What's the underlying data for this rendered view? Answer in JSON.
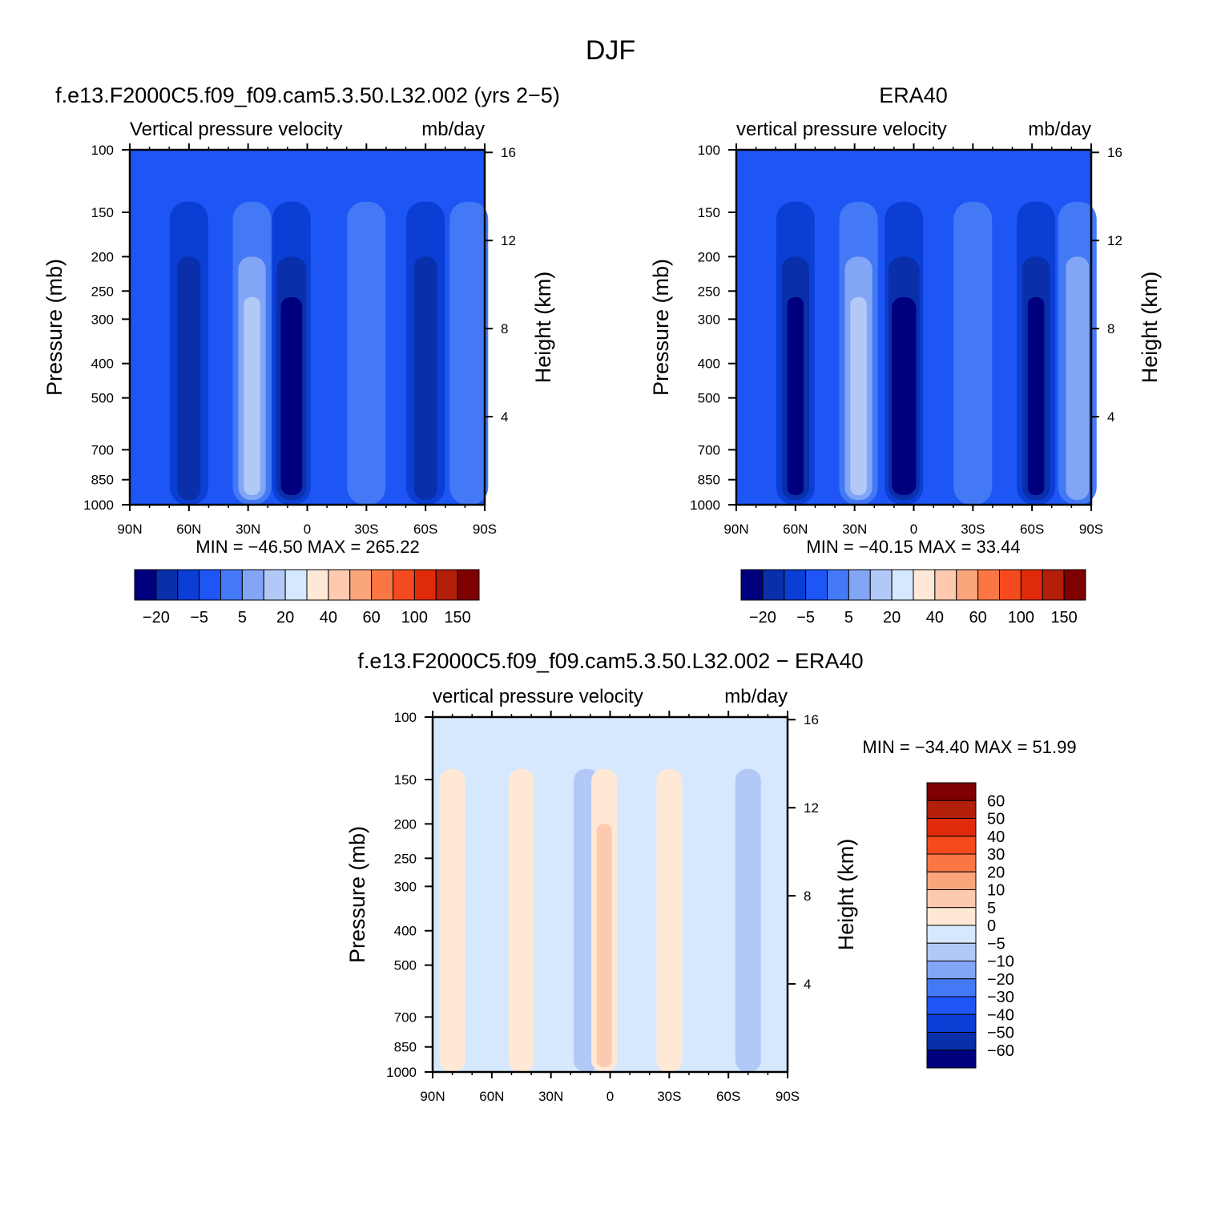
{
  "figure": {
    "title": "DJF"
  },
  "colors": {
    "full_scale": [
      "#00007F",
      "#0A2FAA",
      "#0A3ED4",
      "#1E55F5",
      "#4479F5",
      "#82A5F5",
      "#B2C9F7",
      "#D6E8FD",
      "#FFE9D6",
      "#FDCAB0",
      "#FBA57B",
      "#FB7645",
      "#F54A1E",
      "#DF2B0A",
      "#B21F0A",
      "#7F0000"
    ],
    "diff_scale": [
      "#00007F",
      "#0A2FAA",
      "#0A3ED4",
      "#1E55F5",
      "#4479F5",
      "#82A5F5",
      "#B2C9F7",
      "#D6E8FD",
      "#FFE9D6",
      "#FDCAB0",
      "#FBA57B",
      "#FB7645",
      "#F54A1E",
      "#DF2B0A",
      "#B21F0A",
      "#7F0000"
    ]
  },
  "chart_data": [
    {
      "type": "heatmap",
      "title": "f.e13.F2000C5.f09_f09.cam5.3.50.L32.002 (yrs 2−5)",
      "subtitle_left": "Vertical pressure velocity",
      "subtitle_right": "mb/day",
      "ylabel": "Pressure (mb)",
      "ylabel_right": "Height (km)",
      "x_ticks": [
        "90N",
        "60N",
        "30N",
        "0",
        "30S",
        "60S",
        "90S"
      ],
      "x_tick_values": [
        90,
        60,
        30,
        0,
        -30,
        -60,
        -90
      ],
      "y_ticks": [
        "100",
        "150",
        "200",
        "250",
        "300",
        "400",
        "500",
        "700",
        "850",
        "1000"
      ],
      "y_tick_values": [
        100,
        150,
        200,
        250,
        300,
        400,
        500,
        700,
        850,
        1000
      ],
      "y_right_ticks": [
        "16",
        "12",
        "8",
        "4"
      ],
      "y_right_tick_values": [
        16,
        12,
        8,
        4
      ],
      "ylim": [
        1000,
        100
      ],
      "xlim": [
        90,
        -90
      ],
      "min_label": "MIN = −46.50",
      "max_label": "MAX = 265.22",
      "colorbar_labels": [
        "−20",
        "−5",
        "5",
        "20",
        "40",
        "60",
        "100",
        "150"
      ],
      "features": [
        {
          "lat": 60,
          "level": -2
        },
        {
          "lat": 28,
          "level": 3
        },
        {
          "lat": 8,
          "level": -4
        },
        {
          "lat": -30,
          "level": 1
        },
        {
          "lat": -60,
          "level": -2
        },
        {
          "lat": -82,
          "level": 1
        }
      ]
    },
    {
      "type": "heatmap",
      "title": "ERA40",
      "subtitle_left": "vertical pressure velocity",
      "subtitle_right": "mb/day",
      "ylabel": "Pressure (mb)",
      "ylabel_right": "Height (km)",
      "x_ticks": [
        "90N",
        "60N",
        "30N",
        "0",
        "30S",
        "60S",
        "90S"
      ],
      "x_tick_values": [
        90,
        60,
        30,
        0,
        -30,
        -60,
        -90
      ],
      "y_ticks": [
        "100",
        "150",
        "200",
        "250",
        "300",
        "400",
        "500",
        "700",
        "850",
        "1000"
      ],
      "y_tick_values": [
        100,
        150,
        200,
        250,
        300,
        400,
        500,
        700,
        850,
        1000
      ],
      "y_right_ticks": [
        "16",
        "12",
        "8",
        "4"
      ],
      "y_right_tick_values": [
        16,
        12,
        8,
        4
      ],
      "ylim": [
        1000,
        100
      ],
      "xlim": [
        90,
        -90
      ],
      "min_label": "MIN = −40.15",
      "max_label": "MAX = 33.44",
      "colorbar_labels": [
        "−20",
        "−5",
        "5",
        "20",
        "40",
        "60",
        "100",
        "150"
      ],
      "features": [
        {
          "lat": 60,
          "level": -3
        },
        {
          "lat": 28,
          "level": 3
        },
        {
          "lat": 5,
          "level": -5
        },
        {
          "lat": -30,
          "level": 1
        },
        {
          "lat": -62,
          "level": -3
        },
        {
          "lat": -83,
          "level": 2
        }
      ]
    },
    {
      "type": "heatmap",
      "title": "f.e13.F2000C5.f09_f09.cam5.3.50.L32.002 − ERA40",
      "subtitle_left": "vertical pressure velocity",
      "subtitle_right": "mb/day",
      "ylabel": "Pressure (mb)",
      "ylabel_right": "Height (km)",
      "x_ticks": [
        "90N",
        "60N",
        "30N",
        "0",
        "30S",
        "60S",
        "90S"
      ],
      "x_tick_values": [
        90,
        60,
        30,
        0,
        -30,
        -60,
        -90
      ],
      "y_ticks": [
        "100",
        "150",
        "200",
        "250",
        "300",
        "400",
        "500",
        "700",
        "850",
        "1000"
      ],
      "y_tick_values": [
        100,
        150,
        200,
        250,
        300,
        400,
        500,
        700,
        850,
        1000
      ],
      "y_right_ticks": [
        "16",
        "12",
        "8",
        "4"
      ],
      "y_right_tick_values": [
        16,
        12,
        8,
        4
      ],
      "ylim": [
        1000,
        100
      ],
      "xlim": [
        90,
        -90
      ],
      "min_label": "MIN = −34.40",
      "max_label": "MAX = 51.99",
      "colorbar_labels": [
        "60",
        "50",
        "40",
        "30",
        "20",
        "10",
        "5",
        "0",
        "−5",
        "−10",
        "−20",
        "−30",
        "−40",
        "−50",
        "−60"
      ],
      "features": [
        {
          "lat": 80,
          "level": 0.6
        },
        {
          "lat": 45,
          "level": 0.5
        },
        {
          "lat": 12,
          "level": -0.6
        },
        {
          "lat": 3,
          "level": 1.6
        },
        {
          "lat": -30,
          "level": 0.4
        },
        {
          "lat": -70,
          "level": -0.5
        }
      ]
    }
  ]
}
